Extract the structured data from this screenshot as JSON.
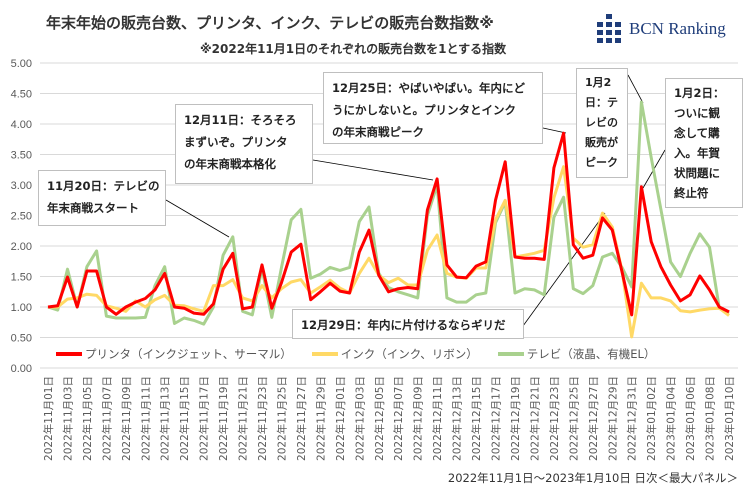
{
  "header": {
    "title": "年末年始の販売台数、プリンタ、インク、テレビの販売台数指数※",
    "subtitle": "※2022年11月1日のそれぞれの販売台数を1とする指数",
    "logo_text": "BCN Ranking"
  },
  "footer": "2022年11月1日～2023年1月10日 日次＜最大パネル＞",
  "annotations": [
    {
      "id": "nov20",
      "text": "11月20日：テレビの\n年末商戦スタート"
    },
    {
      "id": "dec11",
      "text": "12月11日：そろそろ\nまずいぞ。プリンタ\nの年末商戦本格化"
    },
    {
      "id": "dec25",
      "text": "12月25日：やばいやばい。年内にど\nうにかしないと。プリンタとインク\nの年末商戦ピーク"
    },
    {
      "id": "jan2tv",
      "text": "1月2\n日：テ\nレビの\n販売が\nピーク"
    },
    {
      "id": "jan2",
      "text": "1月2日：\nついに観\n念して購\n入。年賀\n状問題に\n終止符"
    },
    {
      "id": "dec29",
      "text": "12月29日：年内に片付けるならギリだ"
    }
  ],
  "chart_data": {
    "type": "line",
    "title": "年末年始の販売台数、プリンタ、インク、テレビの販売台数指数※",
    "ylim": [
      0,
      5
    ],
    "ytick_labels": [
      "0.00",
      "0.50",
      "1.00",
      "1.50",
      "2.00",
      "2.50",
      "3.00",
      "3.50",
      "4.00",
      "4.50",
      "5.00"
    ],
    "grid": true,
    "legend_position": "bottom",
    "tick_labels": [
      "2022年11月01日",
      "2022年11月03日",
      "2022年11月05日",
      "2022年11月07日",
      "2022年11月09日",
      "2022年11月11日",
      "2022年11月13日",
      "2022年11月15日",
      "2022年11月17日",
      "2022年11月19日",
      "2022年11月21日",
      "2022年11月23日",
      "2022年11月25日",
      "2022年11月27日",
      "2022年11月29日",
      "2022年12月01日",
      "2022年12月03日",
      "2022年12月05日",
      "2022年12月07日",
      "2022年12月09日",
      "2022年12月11日",
      "2022年12月13日",
      "2022年12月15日",
      "2022年12月17日",
      "2022年12月19日",
      "2022年12月21日",
      "2022年12月23日",
      "2022年12月25日",
      "2022年12月27日",
      "2022年12月29日",
      "2022年12月31日",
      "2023年01月02日",
      "2023年01月04日",
      "2023年01月06日",
      "2023年01月08日",
      "2023年01月10日"
    ],
    "series": [
      {
        "name": "プリンタ（インクジェット、サーマル）",
        "color": "#ff0000",
        "values": [
          1.0,
          1.02,
          1.49,
          1.0,
          1.59,
          1.59,
          1.0,
          0.88,
          1.0,
          1.08,
          1.14,
          1.28,
          1.55,
          1.0,
          0.98,
          0.9,
          0.88,
          1.05,
          1.62,
          1.88,
          0.97,
          1.0,
          1.69,
          0.98,
          1.4,
          1.9,
          2.03,
          1.12,
          1.25,
          1.39,
          1.26,
          1.23,
          1.9,
          2.26,
          1.52,
          1.25,
          1.3,
          1.32,
          1.3,
          2.59,
          3.1,
          1.69,
          1.49,
          1.48,
          1.67,
          1.74,
          2.75,
          3.38,
          1.82,
          1.8,
          1.8,
          1.78,
          3.28,
          3.85,
          2.02,
          1.8,
          1.85,
          2.46,
          2.26,
          1.58,
          0.87,
          2.97,
          2.07,
          1.66,
          1.36,
          1.1,
          1.2,
          1.51,
          1.28,
          1.0,
          0.92
        ]
      },
      {
        "name": "インク（インク、リボン）",
        "color": "#ffd966",
        "values": [
          1.0,
          1.0,
          1.13,
          1.15,
          1.21,
          1.19,
          1.02,
          0.98,
          0.93,
          1.1,
          1.0,
          1.12,
          1.19,
          1.03,
          1.02,
          0.97,
          0.93,
          1.35,
          1.35,
          1.45,
          1.15,
          1.1,
          1.35,
          1.15,
          1.3,
          1.41,
          1.45,
          1.23,
          1.33,
          1.44,
          1.31,
          1.23,
          1.55,
          1.8,
          1.52,
          1.4,
          1.47,
          1.36,
          1.36,
          1.93,
          2.18,
          1.55,
          1.49,
          1.47,
          1.64,
          1.64,
          2.43,
          2.75,
          1.82,
          1.85,
          1.88,
          1.93,
          2.79,
          3.3,
          2.13,
          1.98,
          2.02,
          2.54,
          2.31,
          1.6,
          0.51,
          1.39,
          1.15,
          1.15,
          1.1,
          0.94,
          0.92,
          0.95,
          0.97,
          0.98,
          0.86
        ]
      },
      {
        "name": "テレビ（液晶、有機EL）",
        "color": "#a9d18e",
        "values": [
          1.0,
          0.95,
          1.62,
          1.0,
          1.66,
          1.92,
          0.85,
          0.82,
          0.82,
          0.82,
          0.83,
          1.35,
          1.66,
          0.73,
          0.82,
          0.78,
          0.72,
          1.0,
          1.85,
          2.15,
          0.93,
          0.87,
          1.63,
          0.83,
          1.65,
          2.43,
          2.6,
          1.47,
          1.54,
          1.65,
          1.6,
          1.65,
          2.4,
          2.64,
          1.55,
          1.32,
          1.25,
          1.2,
          1.15,
          2.5,
          3.0,
          1.15,
          1.08,
          1.08,
          1.2,
          1.23,
          2.38,
          2.72,
          1.23,
          1.3,
          1.28,
          1.2,
          2.47,
          2.8,
          1.3,
          1.22,
          1.35,
          1.82,
          1.88,
          1.65,
          1.33,
          4.36,
          3.45,
          2.6,
          1.74,
          1.5,
          1.88,
          2.2,
          1.98,
          0.98,
          0.9
        ]
      }
    ]
  }
}
